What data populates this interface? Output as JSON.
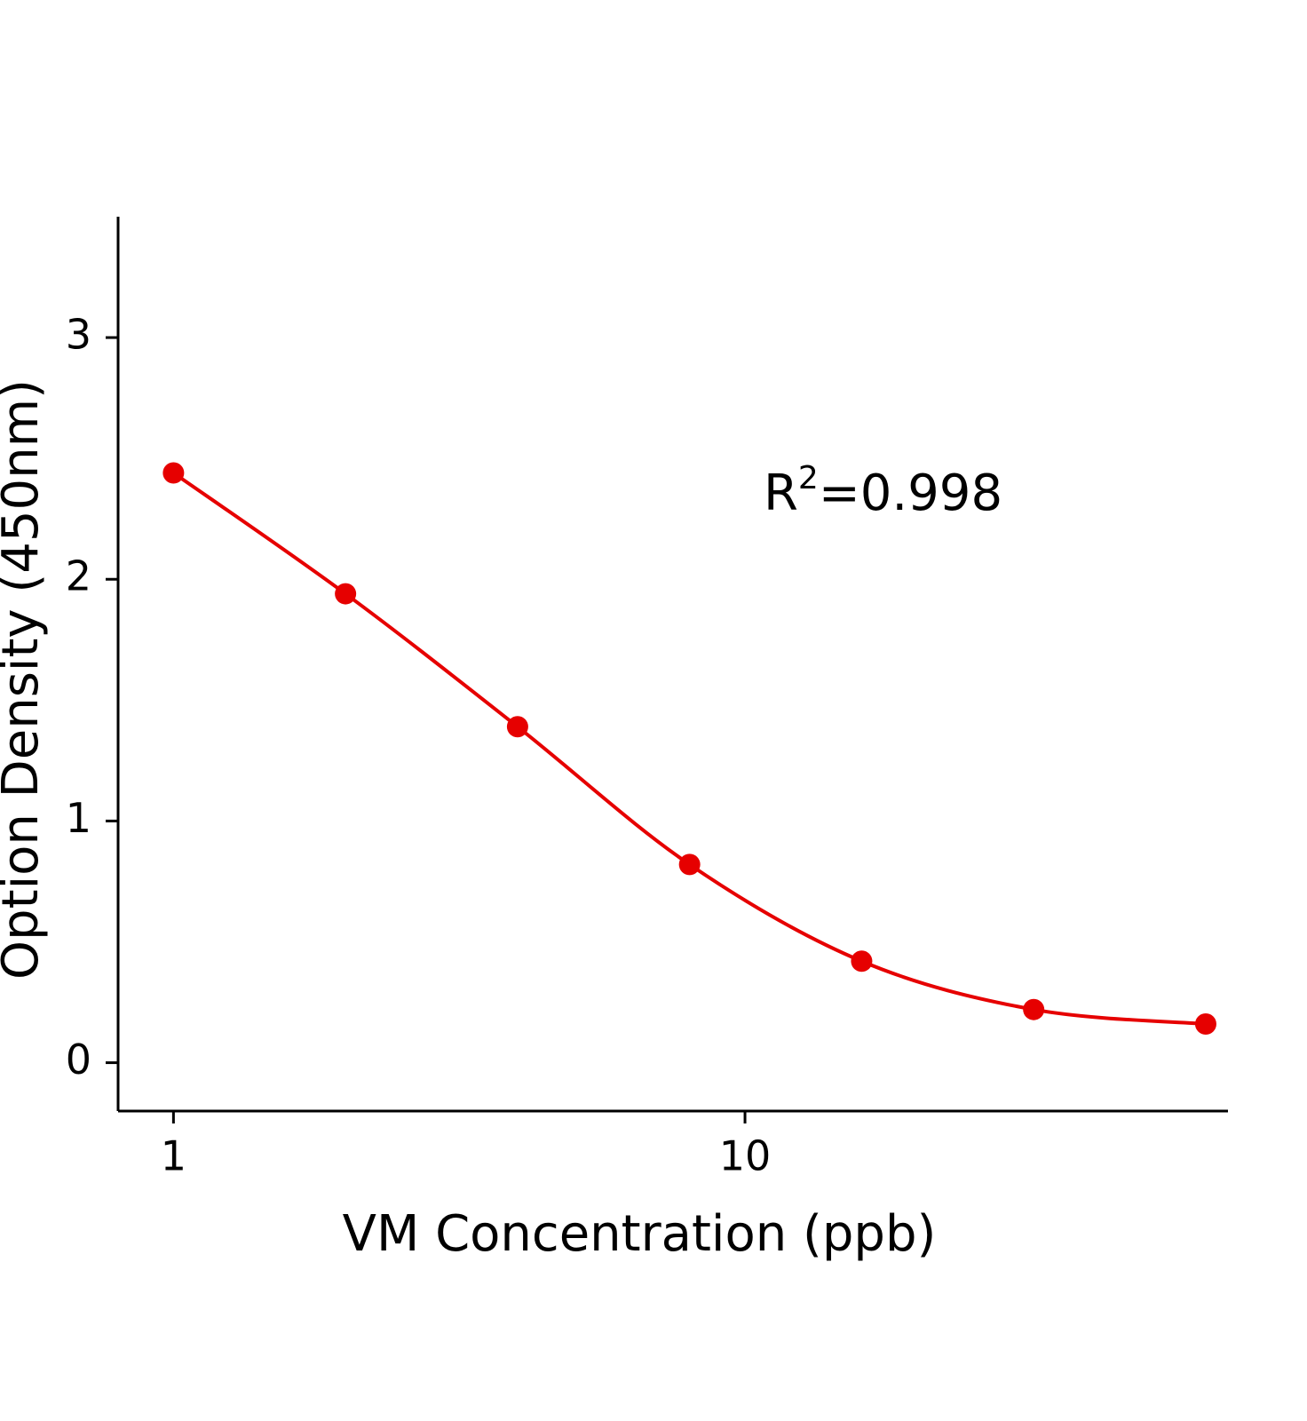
{
  "chart_data": {
    "type": "line",
    "x_label": "VM Concentration (ppb)",
    "y_label": "Option Density (450nm)",
    "annotation": [
      "R",
      "2",
      "=0.998"
    ],
    "x": [
      1,
      2,
      4,
      8,
      16,
      32,
      64
    ],
    "series": [
      {
        "color": "#e60000",
        "values": [
          2.44,
          1.94,
          1.39,
          0.82,
          0.42,
          0.22,
          0.16
        ]
      }
    ],
    "xscale": "log",
    "xlim": [
      0.8,
      70
    ],
    "xticks": [
      1,
      10
    ],
    "ylim": [
      -0.2,
      3.5
    ],
    "yticks": [
      0,
      1,
      2,
      3
    ],
    "smooth": true,
    "markers": true
  }
}
